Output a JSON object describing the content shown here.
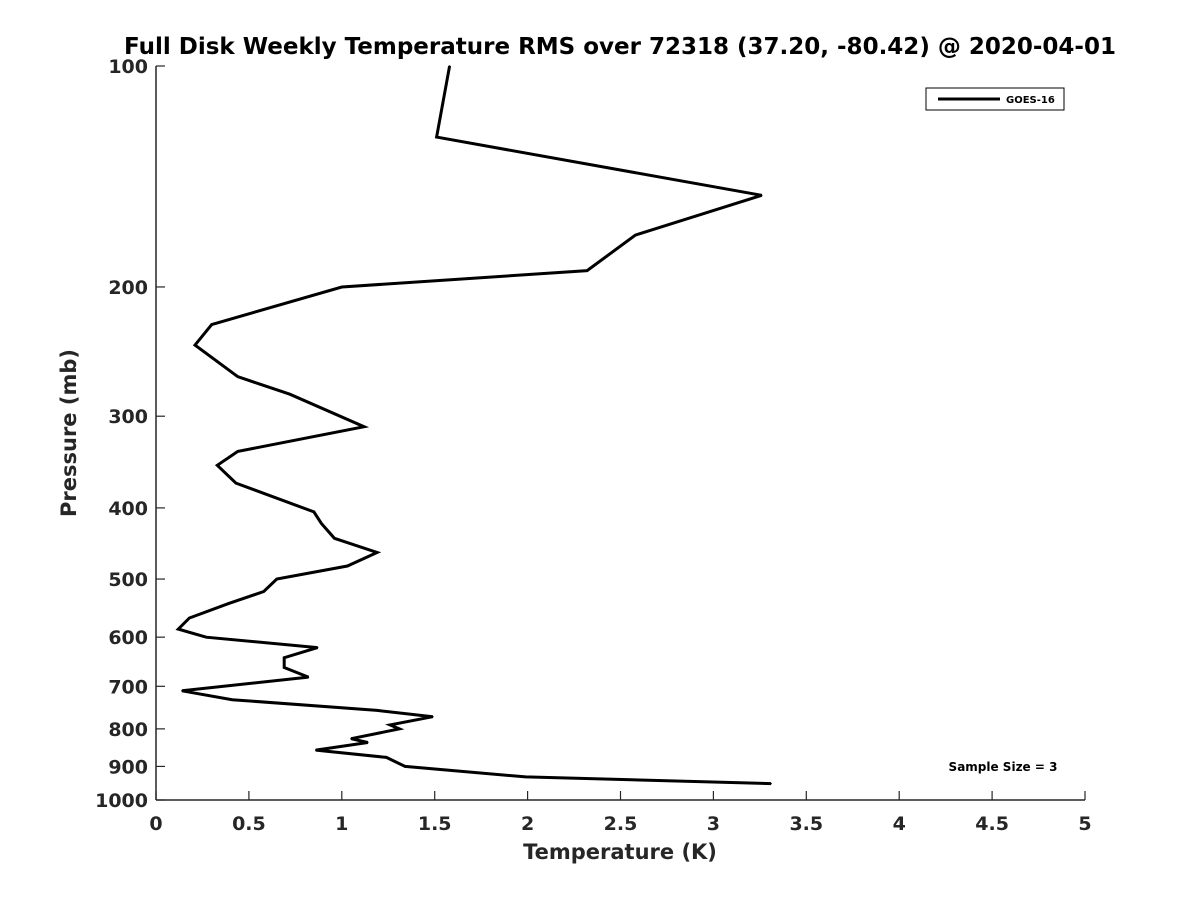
{
  "chart_data": {
    "type": "line",
    "title": "Full Disk Weekly Temperature RMS over 72318 (37.20, -80.42) @ 2020-04-01",
    "xlabel": "Temperature (K)",
    "ylabel": "Pressure (mb)",
    "xlim": [
      0,
      5
    ],
    "ylim": [
      100,
      1000
    ],
    "y_scale": "log",
    "y_reversed": true,
    "grid": false,
    "legend_position": "top-right",
    "x_ticks": [
      "0",
      "0.5",
      "1",
      "1.5",
      "2",
      "2.5",
      "3",
      "3.5",
      "4",
      "4.5",
      "5"
    ],
    "y_ticks": [
      "100",
      "200",
      "300",
      "400",
      "500",
      "600",
      "700",
      "800",
      "900",
      "1000"
    ],
    "series": [
      {
        "name": "GOES-16",
        "color": "#000000",
        "points": [
          [
            1.58,
            100
          ],
          [
            1.51,
            125
          ],
          [
            3.26,
            150
          ],
          [
            2.58,
            170
          ],
          [
            2.32,
            190
          ],
          [
            1.0,
            200
          ],
          [
            0.3,
            225
          ],
          [
            0.21,
            240
          ],
          [
            0.44,
            265
          ],
          [
            0.72,
            280
          ],
          [
            1.12,
            310
          ],
          [
            0.44,
            335
          ],
          [
            0.33,
            350
          ],
          [
            0.43,
            370
          ],
          [
            0.85,
            405
          ],
          [
            0.89,
            420
          ],
          [
            0.96,
            440
          ],
          [
            1.19,
            460
          ],
          [
            1.03,
            480
          ],
          [
            0.65,
            500
          ],
          [
            0.58,
            520
          ],
          [
            0.39,
            540
          ],
          [
            0.18,
            565
          ],
          [
            0.12,
            585
          ],
          [
            0.27,
            600
          ],
          [
            0.87,
            620
          ],
          [
            0.69,
            640
          ],
          [
            0.69,
            660
          ],
          [
            0.82,
            680
          ],
          [
            0.14,
            710
          ],
          [
            0.41,
            730
          ],
          [
            1.19,
            755
          ],
          [
            1.49,
            770
          ],
          [
            1.26,
            790
          ],
          [
            1.31,
            800
          ],
          [
            1.05,
            825
          ],
          [
            1.14,
            835
          ],
          [
            0.86,
            855
          ],
          [
            1.24,
            875
          ],
          [
            1.34,
            900
          ],
          [
            1.99,
            930
          ],
          [
            3.31,
            950
          ]
        ]
      }
    ],
    "annotation": "Sample Size = 3"
  }
}
